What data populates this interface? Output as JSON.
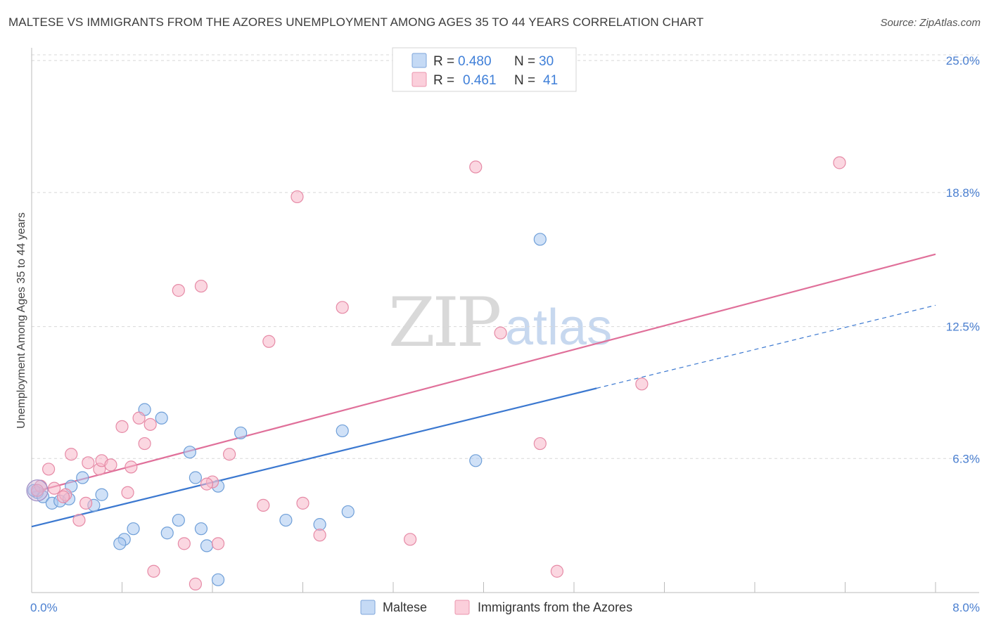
{
  "header": {
    "title": "MALTESE VS IMMIGRANTS FROM THE AZORES UNEMPLOYMENT AMONG AGES 35 TO 44 YEARS CORRELATION CHART",
    "source": "Source: ZipAtlas.com"
  },
  "watermark": {
    "part1": "ZIP",
    "part2": "atlas"
  },
  "legend": {
    "r_label": "R =",
    "n_label": "N =",
    "rows": [
      {
        "name": "Maltese",
        "r": "0.480",
        "n": "30",
        "color": "#a9c8f0"
      },
      {
        "name": "Immigrants from the Azores",
        "r": "0.461",
        "n": "41",
        "color": "#f7b6c8"
      }
    ]
  },
  "chart_data": {
    "type": "scatter",
    "title": "MALTESE VS IMMIGRANTS FROM THE AZORES UNEMPLOYMENT AMONG AGES 35 TO 44 YEARS CORRELATION CHART",
    "xlabel": "",
    "ylabel": "Unemployment Among Ages 35 to 44 years",
    "xlim": [
      0,
      8
    ],
    "ylim": [
      0,
      25.6
    ],
    "x_tick_labels": [
      "0.0%",
      "8.0%"
    ],
    "y_ticks": [
      6.3,
      12.5,
      18.8,
      25.0
    ],
    "y_tick_labels": [
      "6.3%",
      "12.5%",
      "18.8%",
      "25.0%"
    ],
    "grid": true,
    "series": [
      {
        "name": "Maltese",
        "color": "#a9c8f0",
        "edge": "#6f9fd8",
        "line_color": "#3b78d0",
        "trend": {
          "x0": 0.0,
          "y0": 3.1,
          "x1": 5.0,
          "y1": 9.6,
          "dash_to_x": 8.0,
          "dash_to_y": 13.5
        },
        "points": [
          [
            0.05,
            4.7
          ],
          [
            0.1,
            4.5
          ],
          [
            0.18,
            4.2
          ],
          [
            0.25,
            4.3
          ],
          [
            0.33,
            4.4
          ],
          [
            0.35,
            5.0
          ],
          [
            0.45,
            5.4
          ],
          [
            0.62,
            4.6
          ],
          [
            0.55,
            4.1
          ],
          [
            0.82,
            2.5
          ],
          [
            0.9,
            3.0
          ],
          [
            1.0,
            8.6
          ],
          [
            1.15,
            8.2
          ],
          [
            0.78,
            2.3
          ],
          [
            1.2,
            2.8
          ],
          [
            1.3,
            3.4
          ],
          [
            1.4,
            6.6
          ],
          [
            1.45,
            5.4
          ],
          [
            1.5,
            3.0
          ],
          [
            1.55,
            2.2
          ],
          [
            1.65,
            5.0
          ],
          [
            1.85,
            7.5
          ],
          [
            1.65,
            0.6
          ],
          [
            2.25,
            3.4
          ],
          [
            2.55,
            3.2
          ],
          [
            2.8,
            3.8
          ],
          [
            2.75,
            7.6
          ],
          [
            3.93,
            6.2
          ],
          [
            4.5,
            16.6
          ],
          [
            0.02,
            4.8
          ]
        ]
      },
      {
        "name": "Immigrants from the Azores",
        "color": "#f7b6c8",
        "edge": "#e68aa6",
        "line_color": "#e0709a",
        "trend": {
          "x0": 0.0,
          "y0": 4.7,
          "x1": 8.0,
          "y1": 15.9
        },
        "points": [
          [
            0.08,
            5.0
          ],
          [
            0.2,
            4.9
          ],
          [
            0.3,
            4.6
          ],
          [
            0.15,
            5.8
          ],
          [
            0.35,
            6.5
          ],
          [
            0.42,
            3.4
          ],
          [
            0.5,
            6.1
          ],
          [
            0.6,
            5.8
          ],
          [
            0.62,
            6.2
          ],
          [
            0.7,
            6.0
          ],
          [
            0.48,
            4.2
          ],
          [
            0.8,
            7.8
          ],
          [
            0.85,
            4.7
          ],
          [
            0.88,
            5.9
          ],
          [
            0.95,
            8.2
          ],
          [
            1.0,
            7.0
          ],
          [
            1.05,
            7.9
          ],
          [
            1.08,
            1.0
          ],
          [
            1.3,
            14.2
          ],
          [
            1.35,
            2.3
          ],
          [
            1.45,
            0.4
          ],
          [
            1.5,
            14.4
          ],
          [
            1.6,
            5.2
          ],
          [
            1.65,
            2.3
          ],
          [
            1.75,
            6.5
          ],
          [
            2.05,
            4.1
          ],
          [
            2.1,
            11.8
          ],
          [
            2.35,
            18.6
          ],
          [
            2.4,
            4.2
          ],
          [
            2.55,
            2.7
          ],
          [
            2.75,
            13.4
          ],
          [
            3.35,
            2.5
          ],
          [
            3.93,
            20.0
          ],
          [
            4.15,
            12.2
          ],
          [
            4.5,
            7.0
          ],
          [
            4.65,
            1.0
          ],
          [
            5.4,
            9.8
          ],
          [
            7.15,
            20.2
          ],
          [
            0.05,
            4.8
          ],
          [
            1.55,
            5.1
          ],
          [
            0.28,
            4.5
          ]
        ]
      }
    ]
  }
}
